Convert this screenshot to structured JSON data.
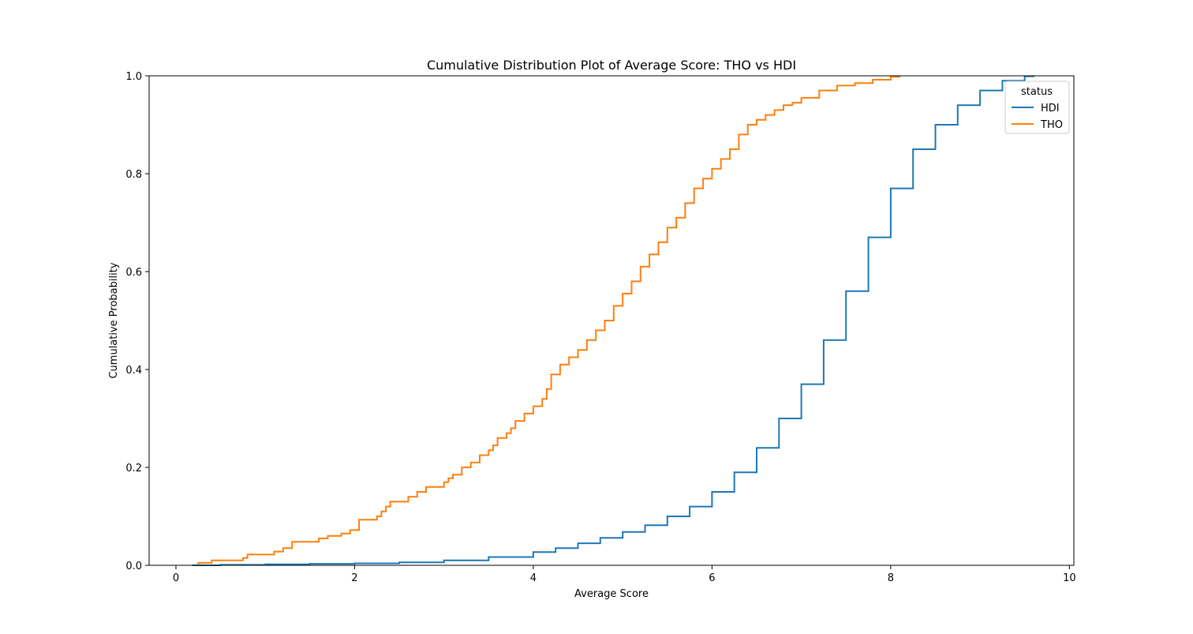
{
  "chart_data": {
    "type": "line",
    "title": "Cumulative Distribution Plot of Average Score: THO vs HDI",
    "xlabel": "Average Score",
    "ylabel": "Cumulative Probability",
    "xlim": [
      -0.3,
      10.05
    ],
    "ylim": [
      0,
      1.0
    ],
    "xticks": [
      0,
      2,
      4,
      6,
      8,
      10
    ],
    "xtick_labels": [
      "0",
      "2",
      "4",
      "6",
      "8",
      "10"
    ],
    "yticks": [
      0.0,
      0.2,
      0.4,
      0.6,
      0.8,
      1.0
    ],
    "ytick_labels": [
      "0.0",
      "0.2",
      "0.4",
      "0.6",
      "0.8",
      "1.0"
    ],
    "grid": false,
    "legend": {
      "title": "status",
      "placement": "top-right"
    },
    "step": true,
    "series": [
      {
        "name": "HDI",
        "color": "#1f77b4",
        "x": [
          0.18,
          0.5,
          1.0,
          1.5,
          2.0,
          2.5,
          3.0,
          3.5,
          4.0,
          4.25,
          4.5,
          4.75,
          5.0,
          5.25,
          5.5,
          5.75,
          6.0,
          6.25,
          6.5,
          6.75,
          7.0,
          7.25,
          7.5,
          7.75,
          8.0,
          8.25,
          8.5,
          8.75,
          9.0,
          9.25,
          9.5,
          9.6
        ],
        "y": [
          0.0,
          0.001,
          0.002,
          0.003,
          0.004,
          0.006,
          0.01,
          0.017,
          0.027,
          0.035,
          0.045,
          0.056,
          0.068,
          0.082,
          0.1,
          0.12,
          0.15,
          0.19,
          0.24,
          0.3,
          0.37,
          0.46,
          0.56,
          0.67,
          0.77,
          0.85,
          0.9,
          0.94,
          0.97,
          0.99,
          0.999,
          1.0
        ]
      },
      {
        "name": "THO",
        "color": "#ff7f0e",
        "x": [
          0.25,
          0.4,
          0.75,
          0.8,
          1.1,
          1.2,
          1.3,
          1.6,
          1.7,
          1.85,
          1.95,
          2.05,
          2.25,
          2.3,
          2.35,
          2.4,
          2.6,
          2.7,
          2.8,
          3.0,
          3.05,
          3.1,
          3.2,
          3.3,
          3.4,
          3.5,
          3.55,
          3.6,
          3.7,
          3.75,
          3.8,
          3.9,
          4.0,
          4.1,
          4.15,
          4.2,
          4.3,
          4.4,
          4.5,
          4.6,
          4.7,
          4.8,
          4.9,
          5.0,
          5.1,
          5.2,
          5.3,
          5.4,
          5.5,
          5.6,
          5.7,
          5.8,
          5.9,
          6.0,
          6.1,
          6.2,
          6.3,
          6.4,
          6.5,
          6.6,
          6.7,
          6.8,
          6.9,
          7.0,
          7.2,
          7.4,
          7.6,
          7.8,
          8.0,
          8.1
        ],
        "y": [
          0.005,
          0.01,
          0.015,
          0.022,
          0.028,
          0.035,
          0.048,
          0.055,
          0.06,
          0.065,
          0.072,
          0.093,
          0.1,
          0.11,
          0.12,
          0.13,
          0.14,
          0.15,
          0.16,
          0.17,
          0.178,
          0.185,
          0.2,
          0.21,
          0.225,
          0.235,
          0.245,
          0.26,
          0.27,
          0.28,
          0.295,
          0.31,
          0.325,
          0.34,
          0.36,
          0.39,
          0.41,
          0.425,
          0.44,
          0.46,
          0.48,
          0.5,
          0.53,
          0.555,
          0.58,
          0.61,
          0.635,
          0.66,
          0.69,
          0.71,
          0.74,
          0.77,
          0.79,
          0.81,
          0.83,
          0.85,
          0.88,
          0.9,
          0.91,
          0.92,
          0.93,
          0.94,
          0.945,
          0.955,
          0.97,
          0.98,
          0.985,
          0.992,
          0.998,
          1.0
        ]
      }
    ]
  }
}
